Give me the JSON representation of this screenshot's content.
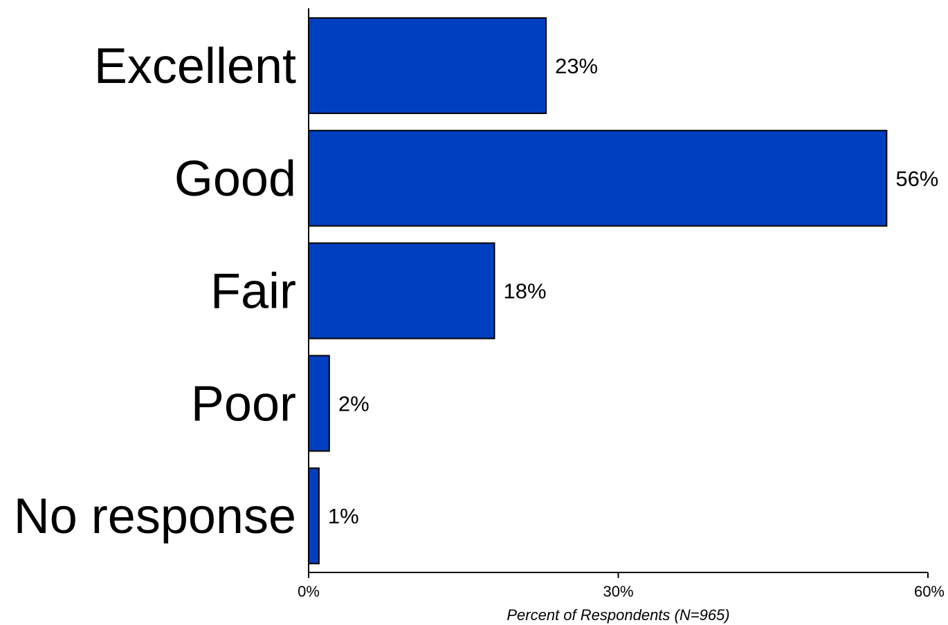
{
  "chart_data": {
    "type": "bar",
    "orientation": "horizontal",
    "categories": [
      "Excellent",
      "Good",
      "Fair",
      "Poor",
      "No response"
    ],
    "values": [
      23,
      56,
      18,
      2,
      1
    ],
    "data_labels": [
      "23%",
      "56%",
      "18%",
      "2%",
      "1%"
    ],
    "xlabel": "Percent of Respondents (N=965)",
    "xlim": [
      0,
      60
    ],
    "ticks": [
      0,
      30,
      60
    ],
    "tick_labels": [
      "0%",
      "30%",
      "60%"
    ],
    "grid": false,
    "legend": "none",
    "colors": {
      "bar_fill": "#0040C0",
      "bar_stroke": "#000000",
      "axis": "#000000",
      "background": "#FFFFFF"
    }
  }
}
